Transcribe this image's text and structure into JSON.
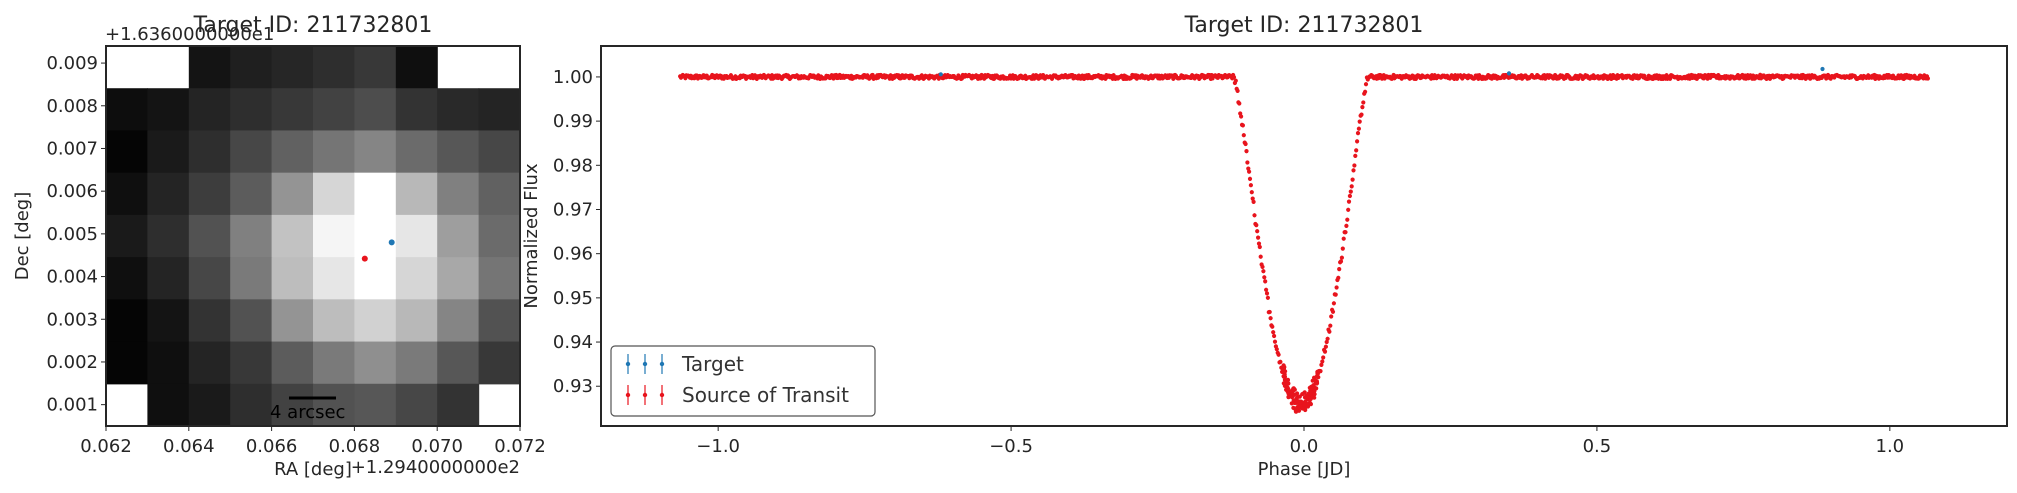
{
  "chart_data": [
    {
      "type": "heatmap",
      "title": "Target ID: 211732801",
      "xlabel": "RA [deg]",
      "ylabel": "Dec [deg]",
      "x_offset_text": "+1.2940000000e2",
      "y_offset_text": "+1.6360000000e1",
      "xlim": [
        0.062,
        0.072
      ],
      "ylim": [
        0.0005,
        0.0094
      ],
      "x_ticks": [
        "0.062",
        "0.064",
        "0.066",
        "0.068",
        "0.070",
        "0.072"
      ],
      "x_tick_values": [
        0.062,
        0.064,
        0.066,
        0.068,
        0.07,
        0.072
      ],
      "y_ticks": [
        "0.001",
        "0.002",
        "0.003",
        "0.004",
        "0.005",
        "0.006",
        "0.007",
        "0.008",
        "0.009"
      ],
      "y_tick_values": [
        0.001,
        0.002,
        0.003,
        0.004,
        0.005,
        0.006,
        0.007,
        0.008,
        0.009
      ],
      "grid": [
        [
          -1,
          -1,
          0.08,
          0.12,
          0.15,
          0.18,
          0.22,
          0.06,
          -1,
          -1
        ],
        [
          0.05,
          0.08,
          0.14,
          0.18,
          0.22,
          0.26,
          0.3,
          0.2,
          0.16,
          0.14
        ],
        [
          0.02,
          0.1,
          0.18,
          0.28,
          0.38,
          0.46,
          0.52,
          0.42,
          0.34,
          0.28
        ],
        [
          0.06,
          0.14,
          0.24,
          0.36,
          0.58,
          0.84,
          1.0,
          0.72,
          0.5,
          0.38
        ],
        [
          0.1,
          0.18,
          0.32,
          0.5,
          0.76,
          0.96,
          1.0,
          0.9,
          0.62,
          0.42
        ],
        [
          0.06,
          0.14,
          0.28,
          0.48,
          0.74,
          0.9,
          1.0,
          0.84,
          0.66,
          0.46
        ],
        [
          0.02,
          0.08,
          0.2,
          0.32,
          0.58,
          0.74,
          0.82,
          0.72,
          0.52,
          0.32
        ],
        [
          0.02,
          0.06,
          0.14,
          0.22,
          0.36,
          0.48,
          0.56,
          0.48,
          0.34,
          0.22
        ],
        [
          -1,
          0.06,
          0.1,
          0.18,
          0.26,
          0.32,
          0.34,
          0.28,
          0.2,
          -1
        ]
      ],
      "markers": [
        {
          "name": "Target",
          "ra": 0.0689,
          "dec": 0.0048,
          "color": "#1f77b4"
        },
        {
          "name": "Source of Transit",
          "ra": 0.06825,
          "dec": 0.00442,
          "color": "#e8141d"
        }
      ],
      "scalebar_label": "4 arcsec"
    },
    {
      "type": "scatter",
      "title": "Target ID: 211732801",
      "xlabel": "Phase [JD]",
      "ylabel": "Normalized Flux",
      "xlim": [
        -1.2,
        1.2
      ],
      "ylim": [
        0.921,
        1.007
      ],
      "x_ticks": [
        "−1.0",
        "−0.5",
        "0.0",
        "0.5",
        "1.0"
      ],
      "x_tick_values": [
        -1.0,
        -0.5,
        0.0,
        0.5,
        1.0
      ],
      "y_ticks": [
        "0.93",
        "0.94",
        "0.95",
        "0.96",
        "0.97",
        "0.98",
        "0.99",
        "1.00"
      ],
      "y_tick_values": [
        0.93,
        0.94,
        0.95,
        0.96,
        0.97,
        0.98,
        0.99,
        1.0
      ],
      "transit_model": {
        "phase_range": [
          -1.065,
          1.065
        ],
        "baseline": 1.0,
        "depth": 0.074,
        "ingress_start": -0.12,
        "egress_end": 0.11,
        "center": -0.005
      },
      "series": [
        {
          "name": "Target",
          "color": "#1f77b4"
        },
        {
          "name": "Source of Transit",
          "color": "#e8141d"
        }
      ],
      "legend_position": "lower-left"
    }
  ]
}
